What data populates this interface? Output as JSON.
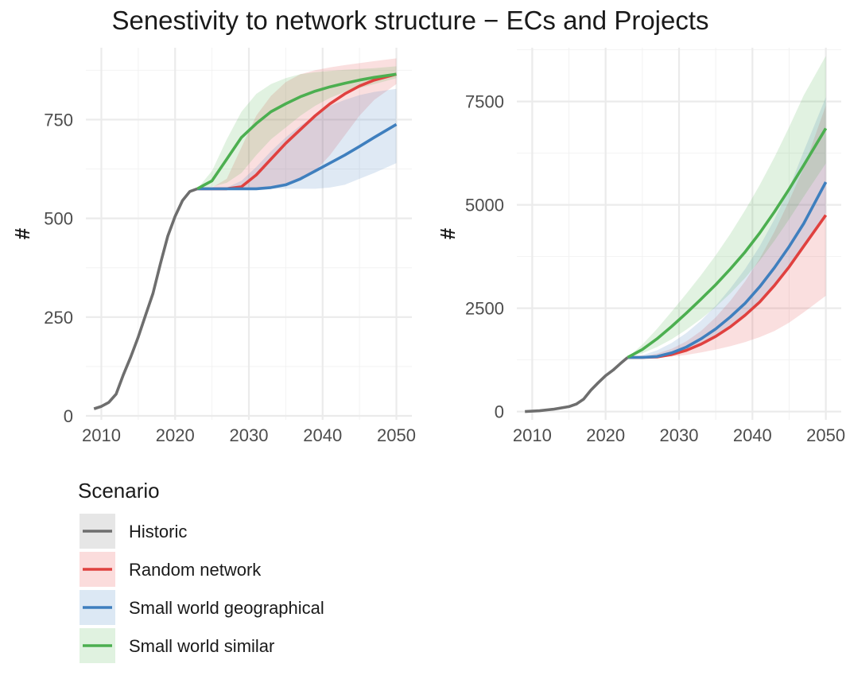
{
  "title": "Senestivity to network structure − ECs and Projects",
  "legend": {
    "title": "Scenario",
    "entries": [
      {
        "label": "Historic",
        "color": "#6e6e6e",
        "fill": "#e6e6e6"
      },
      {
        "label": "Random network",
        "color": "#e0413f",
        "fill": "#fbdcdc"
      },
      {
        "label": "Small world geographical",
        "color": "#3f7fbe",
        "fill": "#dce8f4"
      },
      {
        "label": "Small world similar",
        "color": "#4caf50",
        "fill": "#e0f2e0"
      }
    ]
  },
  "chart_data": [
    {
      "type": "line",
      "panel": "left",
      "title": "",
      "xlabel": "",
      "ylabel": "#",
      "xlim": [
        2007.9,
        2052.1
      ],
      "ylim": [
        -10,
        932
      ],
      "xticks": [
        2010,
        2020,
        2030,
        2040,
        2050
      ],
      "yticks": [
        0,
        250,
        500,
        750
      ],
      "grid": true,
      "series": [
        {
          "name": "Historic",
          "x": [
            2009,
            2010,
            2011,
            2012,
            2013,
            2014,
            2015,
            2016,
            2017,
            2018,
            2019,
            2020,
            2021,
            2022,
            2023
          ],
          "y": [
            18,
            24,
            34,
            55,
            105,
            150,
            200,
            255,
            310,
            385,
            455,
            505,
            545,
            568,
            575
          ]
        },
        {
          "name": "Random network",
          "x": [
            2023,
            2025,
            2027,
            2029,
            2031,
            2033,
            2035,
            2037,
            2039,
            2041,
            2043,
            2045,
            2047,
            2050
          ],
          "y": [
            575,
            575,
            575,
            580,
            610,
            650,
            690,
            725,
            760,
            790,
            815,
            835,
            850,
            865
          ],
          "band_low": [
            575,
            575,
            575,
            575,
            575,
            578,
            585,
            600,
            620,
            660,
            710,
            760,
            800,
            840
          ],
          "band_high": [
            575,
            578,
            600,
            680,
            760,
            810,
            845,
            865,
            875,
            882,
            888,
            893,
            898,
            905
          ]
        },
        {
          "name": "Small world geographical",
          "x": [
            2023,
            2025,
            2027,
            2029,
            2031,
            2033,
            2035,
            2037,
            2039,
            2041,
            2043,
            2045,
            2047,
            2050
          ],
          "y": [
            575,
            575,
            575,
            575,
            575,
            578,
            585,
            600,
            620,
            640,
            660,
            682,
            705,
            738
          ],
          "band_low": [
            575,
            575,
            575,
            575,
            575,
            575,
            575,
            575,
            575,
            578,
            585,
            600,
            615,
            640
          ],
          "band_high": [
            575,
            575,
            578,
            595,
            630,
            670,
            705,
            735,
            760,
            785,
            800,
            812,
            820,
            828
          ]
        },
        {
          "name": "Small world similar",
          "x": [
            2023,
            2025,
            2027,
            2029,
            2031,
            2033,
            2035,
            2037,
            2039,
            2041,
            2043,
            2045,
            2047,
            2050
          ],
          "y": [
            575,
            595,
            650,
            705,
            740,
            770,
            790,
            808,
            822,
            833,
            842,
            850,
            857,
            865
          ],
          "band_low": [
            575,
            580,
            590,
            615,
            660,
            700,
            730,
            760,
            785,
            805,
            820,
            830,
            840,
            855
          ],
          "band_high": [
            575,
            620,
            700,
            770,
            815,
            840,
            855,
            865,
            870,
            873,
            876,
            878,
            880,
            885
          ]
        }
      ]
    },
    {
      "type": "line",
      "panel": "right",
      "title": "",
      "xlabel": "",
      "ylabel": "#",
      "xlim": [
        2007.9,
        2052.1
      ],
      "ylim": [
        -200,
        8800
      ],
      "xticks": [
        2010,
        2020,
        2030,
        2040,
        2050
      ],
      "yticks": [
        0,
        2500,
        5000,
        7500
      ],
      "grid": true,
      "series": [
        {
          "name": "Historic",
          "x": [
            2009,
            2011,
            2013,
            2015,
            2016,
            2017,
            2018,
            2019,
            2020,
            2021,
            2022,
            2023
          ],
          "y": [
            0,
            20,
            60,
            120,
            180,
            300,
            520,
            700,
            870,
            1000,
            1160,
            1310
          ]
        },
        {
          "name": "Random network",
          "x": [
            2023,
            2025,
            2027,
            2029,
            2031,
            2033,
            2035,
            2037,
            2039,
            2041,
            2043,
            2045,
            2047,
            2050
          ],
          "y": [
            1310,
            1310,
            1320,
            1380,
            1480,
            1630,
            1820,
            2050,
            2330,
            2650,
            3050,
            3500,
            4000,
            4750
          ],
          "band_low": [
            1310,
            1310,
            1310,
            1330,
            1370,
            1430,
            1500,
            1580,
            1680,
            1800,
            1950,
            2150,
            2400,
            2800
          ],
          "band_high": [
            1310,
            1330,
            1400,
            1520,
            1700,
            1950,
            2280,
            2680,
            3150,
            3700,
            4350,
            5100,
            5900,
            7400
          ]
        },
        {
          "name": "Small world geographical",
          "x": [
            2023,
            2025,
            2027,
            2029,
            2031,
            2033,
            2035,
            2037,
            2039,
            2041,
            2043,
            2045,
            2047,
            2050
          ],
          "y": [
            1310,
            1310,
            1330,
            1420,
            1560,
            1760,
            2000,
            2290,
            2620,
            3020,
            3480,
            3990,
            4550,
            5550
          ],
          "band_low": [
            1310,
            1310,
            1320,
            1370,
            1470,
            1620,
            1820,
            2060,
            2350,
            2700,
            3100,
            3560,
            4050,
            4800
          ],
          "band_high": [
            1310,
            1360,
            1480,
            1660,
            1900,
            2200,
            2560,
            2980,
            3450,
            4000,
            4650,
            5400,
            6300,
            7600
          ]
        },
        {
          "name": "Small world similar",
          "x": [
            2023,
            2025,
            2027,
            2029,
            2031,
            2033,
            2035,
            2037,
            2039,
            2041,
            2043,
            2045,
            2047,
            2050
          ],
          "y": [
            1310,
            1500,
            1760,
            2060,
            2380,
            2720,
            3070,
            3450,
            3860,
            4320,
            4830,
            5380,
            5960,
            6850
          ],
          "band_low": [
            1310,
            1410,
            1560,
            1750,
            1980,
            2240,
            2530,
            2860,
            3230,
            3650,
            4130,
            4650,
            5200,
            6000
          ],
          "band_high": [
            1310,
            1620,
            2000,
            2420,
            2850,
            3300,
            3780,
            4300,
            4870,
            5480,
            6150,
            6880,
            7650,
            8600
          ]
        }
      ]
    }
  ]
}
